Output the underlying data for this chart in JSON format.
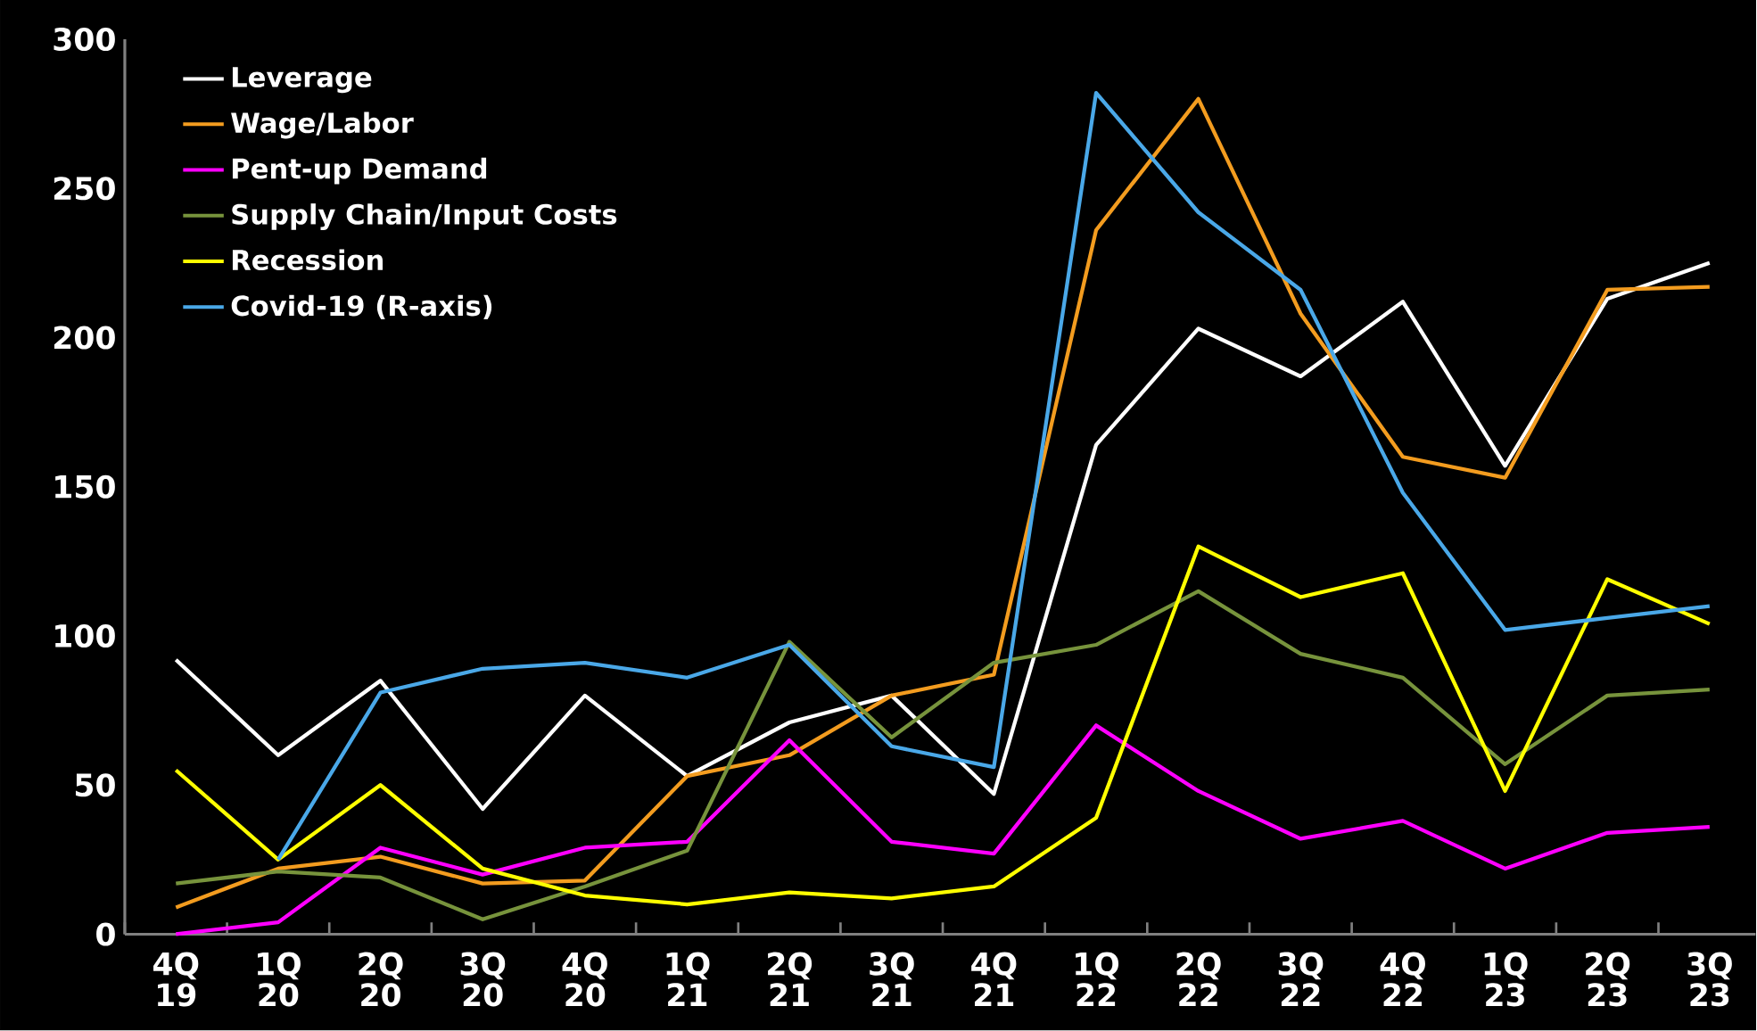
{
  "chart_data": {
    "type": "line",
    "categories": [
      "4Q 19",
      "1Q 20",
      "2Q 20",
      "3Q 20",
      "4Q 20",
      "1Q 21",
      "2Q 21",
      "3Q 21",
      "4Q 21",
      "1Q 22",
      "2Q 22",
      "3Q 22",
      "4Q 22",
      "1Q 23",
      "2Q 23",
      "3Q 23"
    ],
    "series": [
      {
        "name": "Leverage",
        "color": "#ffffff",
        "values": [
          92,
          60,
          85,
          42,
          80,
          53,
          71,
          80,
          47,
          164,
          203,
          187,
          212,
          157,
          213,
          225
        ]
      },
      {
        "name": "Wage/Labor",
        "color": "#f39c1f",
        "values": [
          9,
          22,
          26,
          17,
          18,
          53,
          60,
          80,
          87,
          236,
          280,
          208,
          160,
          153,
          216,
          217
        ]
      },
      {
        "name": "Pent-up Demand",
        "color": "#ff00ff",
        "values": [
          0,
          4,
          29,
          20,
          29,
          31,
          65,
          31,
          27,
          70,
          48,
          32,
          38,
          22,
          34,
          36
        ]
      },
      {
        "name": "Supply Chain/Input Costs",
        "color": "#77933c",
        "values": [
          17,
          21,
          19,
          5,
          16,
          28,
          98,
          66,
          91,
          97,
          115,
          94,
          86,
          57,
          80,
          82
        ]
      },
      {
        "name": "Recession",
        "color": "#ffff00",
        "values": [
          55,
          25,
          50,
          22,
          13,
          10,
          14,
          12,
          16,
          39,
          130,
          113,
          121,
          48,
          119,
          104
        ]
      },
      {
        "name": "Covid-19 (R-axis)",
        "color": "#4aa8e8",
        "values": [
          null,
          25,
          81,
          89,
          91,
          86,
          97,
          63,
          56,
          282,
          242,
          216,
          148,
          102,
          106,
          110
        ]
      }
    ],
    "ylim": [
      0,
      300
    ],
    "yticks": [
      0,
      50,
      100,
      150,
      200,
      250,
      300
    ],
    "legend": "top left",
    "marker": "none",
    "line_style": "solid",
    "grid": false
  }
}
